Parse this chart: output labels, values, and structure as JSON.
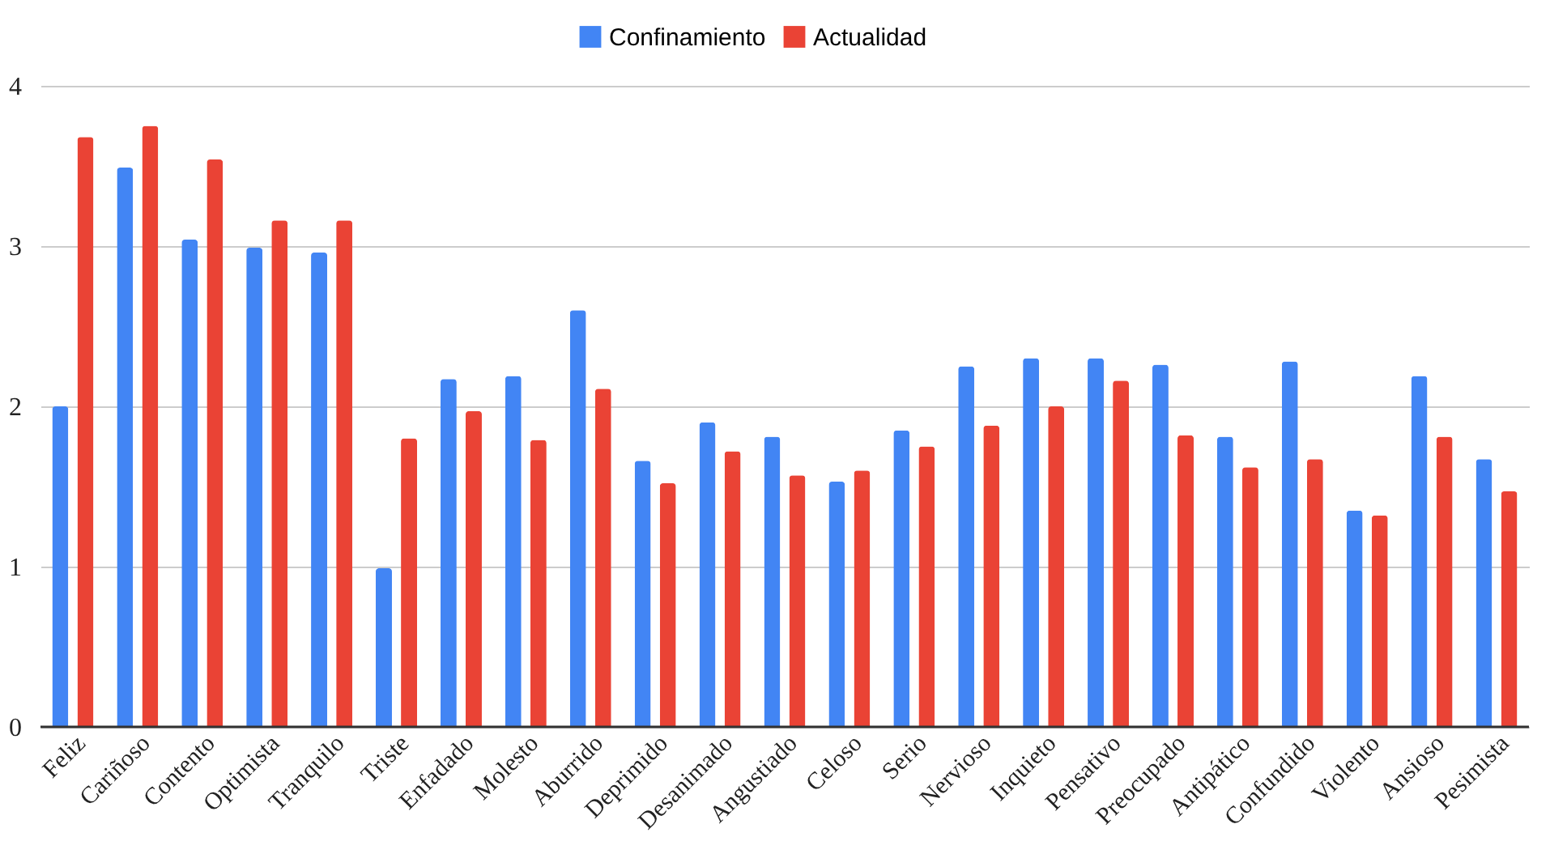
{
  "chart_data": {
    "type": "bar",
    "categories": [
      "Feliz",
      "Cariñoso",
      "Contento",
      "Optimista",
      "Tranquilo",
      "Triste",
      "Enfadado",
      "Molesto",
      "Aburrido",
      "Deprimido",
      "Desanimado",
      "Angustiado",
      "Celoso",
      "Serio",
      "Nervioso",
      "Inquieto",
      "Pensativo",
      "Preocupado",
      "Antipático",
      "Confundido",
      "Violento",
      "Ansioso",
      "Pesimista"
    ],
    "series": [
      {
        "name": "Confinamiento",
        "color": "#4285f4",
        "values": [
          2.0,
          3.49,
          3.04,
          2.99,
          2.96,
          0.99,
          2.17,
          2.19,
          2.6,
          1.66,
          1.9,
          1.81,
          1.53,
          1.85,
          2.25,
          2.3,
          2.3,
          2.26,
          1.81,
          2.28,
          1.35,
          2.19,
          1.67
        ]
      },
      {
        "name": "Actualidad",
        "color": "#ea4335",
        "values": [
          3.68,
          3.75,
          3.54,
          3.16,
          3.16,
          1.8,
          1.97,
          1.79,
          2.11,
          1.52,
          1.72,
          1.57,
          1.6,
          1.75,
          1.88,
          2.0,
          2.16,
          1.82,
          1.62,
          1.67,
          1.32,
          1.81,
          1.47
        ]
      }
    ],
    "ylim": [
      0,
      4
    ],
    "yticks": [
      0,
      1,
      2,
      3,
      4
    ],
    "grid": "y",
    "legend": "top"
  }
}
